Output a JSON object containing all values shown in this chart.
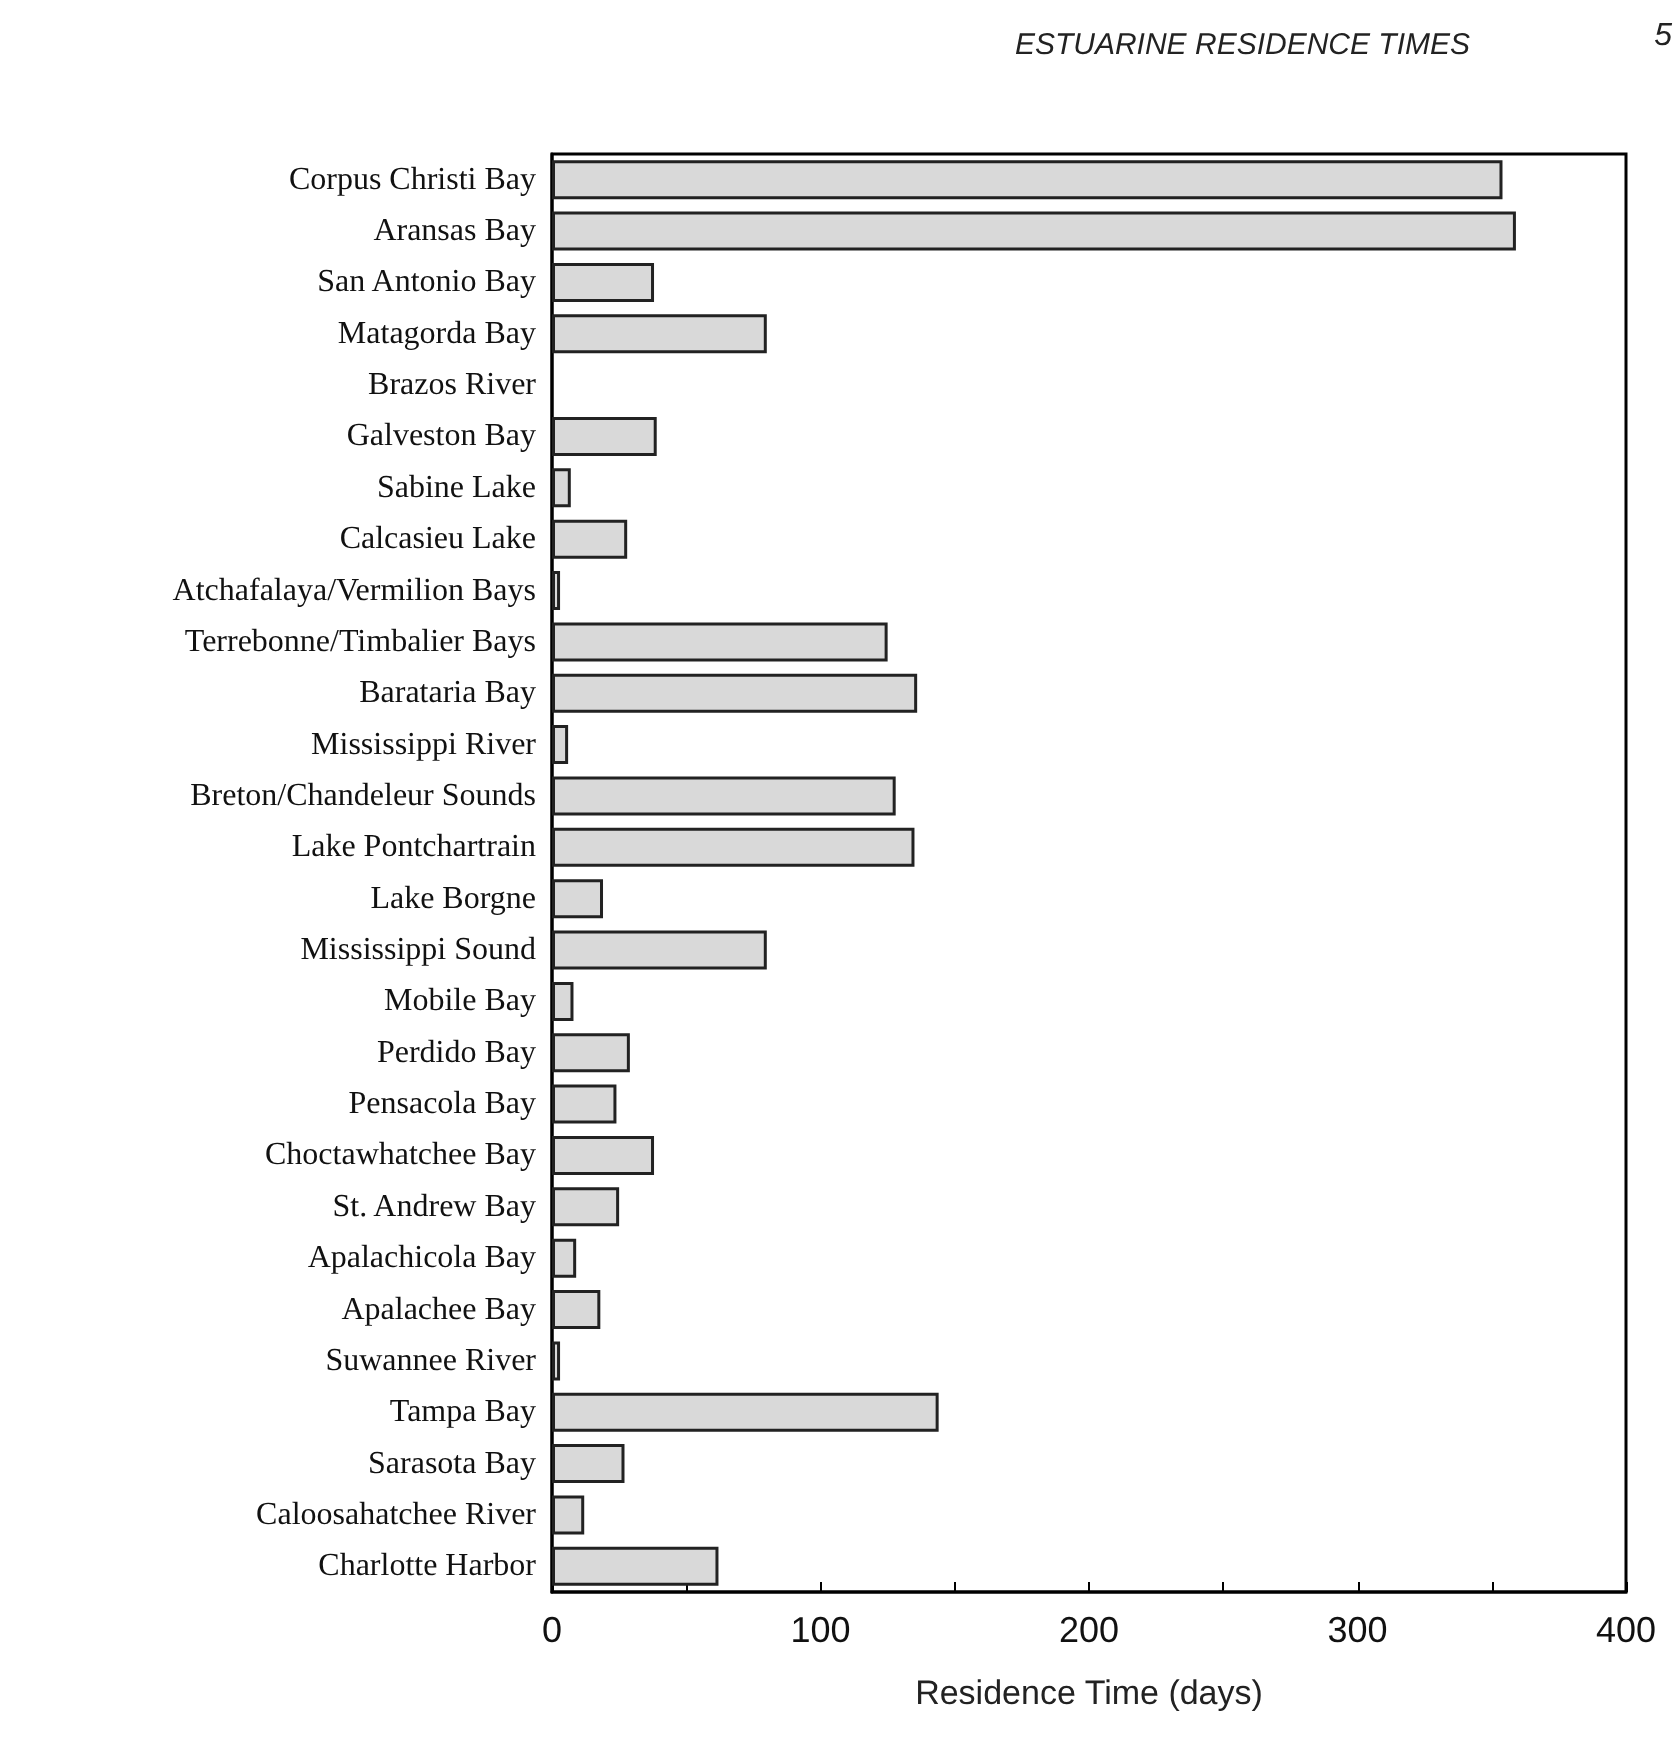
{
  "chart_data": {
    "type": "bar",
    "orientation": "horizontal",
    "title": "ESTUARINE RESIDENCE TIMES",
    "annotations": [
      "5"
    ],
    "xlabel": "Residence Time (days)",
    "categories": [
      "Corpus Christi Bay",
      "Aransas Bay",
      "San Antonio Bay",
      "Matagorda Bay",
      "Brazos River",
      "Galveston Bay",
      "Sabine Lake",
      "Calcasieu Lake",
      "Atchafalaya/Vermilion Bays",
      "Terrebonne/Timbalier Bays",
      "Barataria Bay",
      "Mississippi River",
      "Breton/Chandeleur Sounds",
      "Lake Pontchartrain",
      "Lake Borgne",
      "Mississippi Sound",
      "Mobile Bay",
      "Perdido Bay",
      "Pensacola Bay",
      "Choctawhatchee Bay",
      "St. Andrew Bay",
      "Apalachicola Bay",
      "Apalachee Bay",
      "Suwannee River",
      "Tampa Bay",
      "Sarasota Bay",
      "Caloosahatchee River",
      "Charlotte Harbor"
    ],
    "values": [
      354,
      359,
      38,
      80,
      null,
      39,
      7,
      28,
      3,
      125,
      136,
      6,
      128,
      135,
      19,
      80,
      8,
      29,
      24,
      38,
      25,
      9,
      18,
      3,
      144,
      27,
      12,
      62
    ],
    "color": "#d9d9d9",
    "xlim": [
      0,
      400
    ],
    "xticks": [
      0,
      {
        "value": 50,
        "label": null
      },
      100,
      {
        "value": 150,
        "label": null
      },
      200,
      {
        "value": 250,
        "label": null
      },
      300,
      {
        "value": 350,
        "label": null
      },
      400
    ],
    "grid": false
  }
}
